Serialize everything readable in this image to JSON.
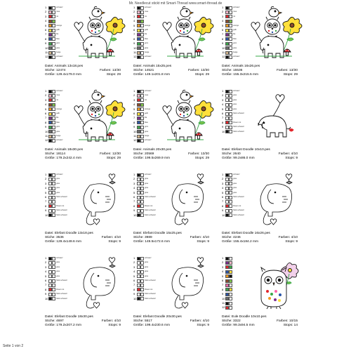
{
  "header": {
    "title": "Mr. Needlecut stickt mit Smart-Thread   www.smart-thread.de"
  },
  "footer": {
    "page": "Seite 1 von 2"
  },
  "labels": {
    "file": "Datei:",
    "stitches": "Stiche:",
    "colors": "Farben:",
    "size": "Größe:",
    "stops": "Stops:"
  },
  "palettes": {
    "animals": {
      "rows": [
        {
          "n": "1",
          "c": [
            "#111111",
            "#ffffff"
          ],
          "t": "schwarz"
        },
        {
          "n": "2",
          "c": [
            "#f2b6c9",
            "#ffffff"
          ],
          "t": "rosa"
        },
        {
          "n": "3",
          "c": [
            "#e3262b",
            "#ffffff"
          ],
          "t": "rot"
        },
        {
          "n": "4",
          "c": [
            "#8c4c2c",
            "#7ec24a"
          ],
          "t": ""
        },
        {
          "n": "5",
          "c": [
            "#f39a1e",
            "#ffffff"
          ],
          "t": "orange"
        },
        {
          "n": "6",
          "c": [
            "#ffe03a",
            "#ffffff"
          ],
          "t": "gelb"
        },
        {
          "n": "7",
          "c": [
            "#7c2d8e",
            "#ffffff"
          ],
          "t": "lila"
        },
        {
          "n": "8",
          "c": [
            "#2a55a8",
            "#ffffff"
          ],
          "t": "blau"
        },
        {
          "n": "9",
          "c": [
            "#3aa84a",
            "#ffffff"
          ],
          "t": "grün"
        },
        {
          "n": "10",
          "c": [
            "#6b6b6b",
            "#ffffff"
          ],
          "t": "grau"
        },
        {
          "n": "11",
          "c": [
            "#d2b48c",
            "#ffffff"
          ],
          "t": "beige"
        },
        {
          "n": "12",
          "c": [
            "#111111",
            "#ffffff"
          ],
          "t": "schwarz"
        }
      ]
    },
    "elefant": {
      "rows": [
        {
          "n": "1",
          "c": [
            "#111111",
            "#ffffff"
          ],
          "t": "schwarz"
        },
        {
          "n": "2",
          "c": [
            "#ffffff",
            "#ffffff"
          ],
          "t": "grau"
        },
        {
          "n": "3",
          "c": [
            "#ffffff",
            "#ffffff"
          ],
          "t": "grau"
        },
        {
          "n": "4",
          "c": [
            "#ffffff",
            "#ffffff"
          ],
          "t": "grau"
        },
        {
          "n": "5",
          "c": [
            "#ffffff",
            "#ffffff"
          ],
          "t": "grau"
        },
        {
          "n": "6",
          "c": [
            "#ffffff",
            "#ffffff"
          ],
          "t": "Stick schwarz"
        },
        {
          "n": "7",
          "c": [
            "#ffffff",
            "#ffffff"
          ],
          "t": ""
        },
        {
          "n": "8",
          "c": [
            "#e3262b",
            "#ffffff"
          ],
          "t": "Rosen rot"
        },
        {
          "n": "9",
          "c": [
            "#ffffff",
            "#ffffff"
          ],
          "t": "Stick schwarz"
        },
        {
          "n": "10",
          "c": [
            "#111111",
            "#ffffff"
          ],
          "t": "Stick schwarz"
        }
      ]
    },
    "eule": {
      "rows": [
        {
          "n": "1",
          "c": [
            "#111111",
            "#ffffff"
          ],
          "t": ""
        },
        {
          "n": "2",
          "c": [
            "#7c2d8e",
            "#f2b6c9"
          ],
          "t": ""
        },
        {
          "n": "3",
          "c": [
            "#e3262b",
            "#3aa84a"
          ],
          "t": ""
        },
        {
          "n": "4",
          "c": [
            "#2a55a8",
            "#ffe03a"
          ],
          "t": ""
        },
        {
          "n": "5",
          "c": [
            "#f39a1e",
            "#111111"
          ],
          "t": ""
        },
        {
          "n": "6",
          "c": [
            "#8c4c2c",
            "#7ec24a"
          ],
          "t": ""
        },
        {
          "n": "7",
          "c": [
            "#ff66aa",
            "#ffffff"
          ],
          "t": ""
        },
        {
          "n": "8",
          "c": [
            "#3aa84a",
            "#ffe03a"
          ],
          "t": ""
        },
        {
          "n": "9",
          "c": [
            "#2a55a8",
            "#ffffff"
          ],
          "t": ""
        },
        {
          "n": "10",
          "c": [
            "#6b6b6b",
            "#ffffff"
          ],
          "t": ""
        },
        {
          "n": "11",
          "c": [
            "#111111",
            "#ffffff"
          ],
          "t": ""
        },
        {
          "n": "12",
          "c": [
            "#e3262b",
            "#ffffff"
          ],
          "t": ""
        }
      ]
    }
  },
  "designs": [
    {
      "file": "Animals 13x18.pes",
      "stitches": "12474",
      "colors": "13/30",
      "size": "129.4x179.0 mm",
      "stops": "29",
      "kind": "animals"
    },
    {
      "file": "Animals 15x25.pes",
      "stitches": "14521",
      "colors": "13/30",
      "size": "149.1x201.8 mm",
      "stops": "29",
      "kind": "animals"
    },
    {
      "file": "Animals 16x26.pes",
      "stitches": "15536",
      "colors": "13/30",
      "size": "155.3x215.5 mm",
      "stops": "29",
      "kind": "animals"
    },
    {
      "file": "Animals 18x30.pes",
      "stitches": "18114",
      "colors": "12/30",
      "size": "179.2x242.4 mm",
      "stops": "29",
      "kind": "animals"
    },
    {
      "file": "Animals 20x30.pes",
      "stitches": "20569",
      "colors": "13/30",
      "size": "199.5x269.9 mm",
      "stops": "29",
      "kind": "animals"
    },
    {
      "file": "Elefant Doodle 10x10.pes",
      "stitches": "2640",
      "colors": "4/10",
      "size": "99.2x86.0 mm",
      "stops": "9",
      "kind": "elefant-full"
    },
    {
      "file": "Elefant Doodle 13x18.pes",
      "stitches": "3536",
      "colors": "4/10",
      "size": "129.4x149.6 mm",
      "stops": "9",
      "kind": "elefant"
    },
    {
      "file": "Elefant Doodle 15x25.pes",
      "stitches": "3989",
      "colors": "4/10",
      "size": "149.5x172.6 mm",
      "stops": "9",
      "kind": "elefant"
    },
    {
      "file": "Elefant Doodle 16x26.pes",
      "stitches": "4246",
      "colors": "4/10",
      "size": "155.4x184.2 mm",
      "stops": "9",
      "kind": "elefant"
    },
    {
      "file": "Elefant Doodle 18x30.pes",
      "stitches": "4697",
      "colors": "4/10",
      "size": "179.2x207.2 mm",
      "stops": "9",
      "kind": "elefant"
    },
    {
      "file": "Elefant Doodle 20x30.pes",
      "stitches": "5517",
      "colors": "4/10",
      "size": "199.4x230.6 mm",
      "stops": "9",
      "kind": "elefant"
    },
    {
      "file": "Eule Doodle 10x10.pes",
      "stitches": "3322",
      "colors": "10/15",
      "size": "99.3x94.5 mm",
      "stops": "14",
      "kind": "eule"
    }
  ]
}
